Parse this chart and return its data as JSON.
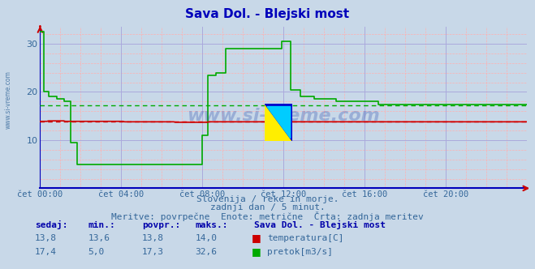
{
  "title": "Sava Dol. - Blejski most",
  "title_color": "#0000bb",
  "bg_color": "#c8d8e8",
  "plot_bg_color": "#c8d8e8",
  "x_ticks": [
    "čet 00:00",
    "čet 04:00",
    "čet 08:00",
    "čet 12:00",
    "čet 16:00",
    "čet 20:00"
  ],
  "x_tick_positions": [
    0,
    48,
    96,
    144,
    192,
    240
  ],
  "y_ticks": [
    10,
    20,
    30
  ],
  "ylim": [
    0,
    33.5
  ],
  "xlim": [
    0,
    288
  ],
  "temp_color": "#cc0000",
  "flow_color": "#00aa00",
  "temp_avg": 13.8,
  "flow_avg": 17.3,
  "subtitle1": "Slovenija / reke in morje.",
  "subtitle2": "zadnji dan / 5 minut.",
  "subtitle3": "Meritve: povrpečne  Enote: metrične  Črta: zadnja meritev",
  "table_headers": [
    "sedaj:",
    "min.:",
    "povpr.:",
    "maks.:"
  ],
  "temp_row": [
    "13,8",
    "13,6",
    "13,8",
    "14,0"
  ],
  "flow_row": [
    "17,4",
    "5,0",
    "17,3",
    "32,6"
  ],
  "station_label": "Sava Dol. - Blejski most",
  "temp_label": "temperatura[C]",
  "flow_label": "pretok[m3/s]",
  "text_color": "#336699",
  "header_color": "#0000aa"
}
